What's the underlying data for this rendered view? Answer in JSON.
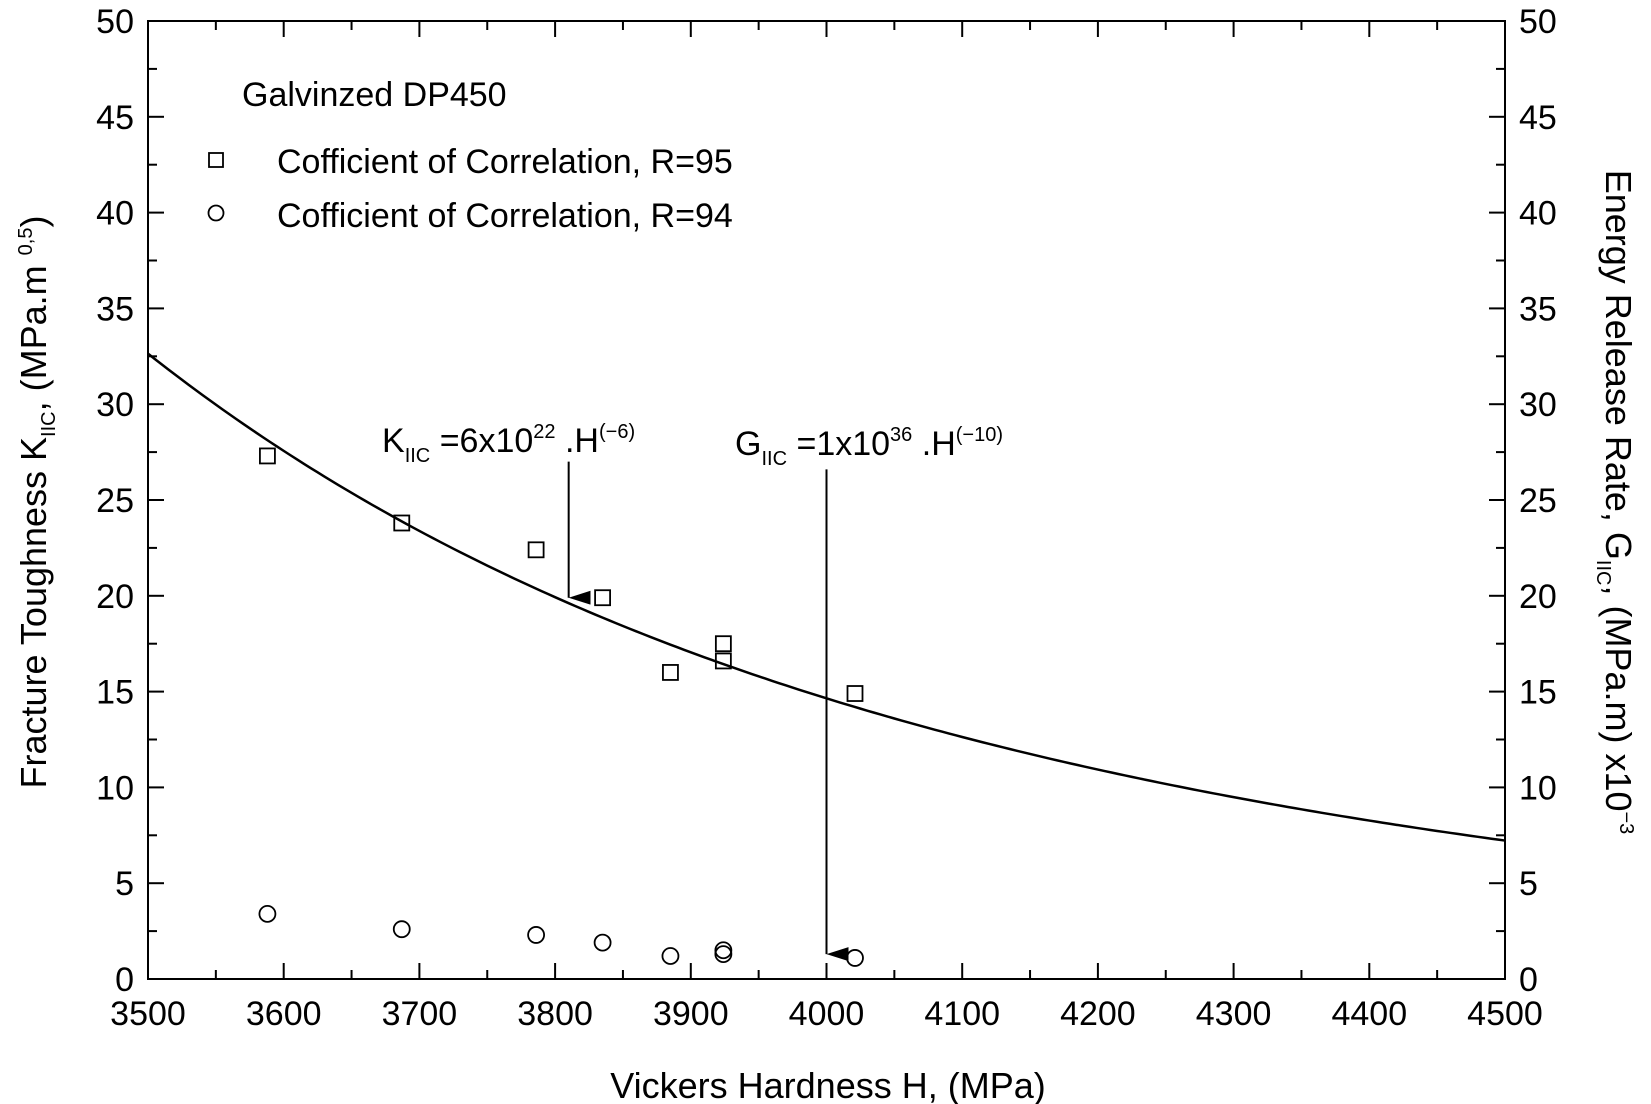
{
  "chart_data": {
    "type": "scatter",
    "xlabel": "Vickers Hardness H, (MPa)",
    "ylabel_left": {
      "main": "Fracture Toughness K",
      "sub": "IIC",
      "after": ", (MPa.m ",
      "sup": "0,5",
      "close": ")"
    },
    "ylabel_right": {
      "main": "Energy Release Rate, G",
      "sub": "IIC",
      "after": ", (MPa.m) x10",
      "sup": "−3"
    },
    "xlim": [
      3500,
      4500
    ],
    "ylim": [
      0,
      50
    ],
    "x_ticks": [
      3500,
      3600,
      3700,
      3800,
      3900,
      4000,
      4100,
      4200,
      4300,
      4400,
      4500
    ],
    "y_ticks": [
      0,
      5,
      10,
      15,
      20,
      25,
      30,
      35,
      40,
      45,
      50
    ],
    "grid": false,
    "legend": {
      "title": "Galvinzed DP450",
      "placement": "top-left",
      "entries": [
        {
          "marker": "square",
          "label": "Cofficient of Correlation, R=95"
        },
        {
          "marker": "circle",
          "label": "Cofficient of Correlation, R=94"
        }
      ]
    },
    "series": [
      {
        "marker": "square",
        "axis": "left",
        "points": [
          {
            "x": 3588,
            "y": 27.3
          },
          {
            "x": 3687,
            "y": 23.8
          },
          {
            "x": 3786,
            "y": 22.4
          },
          {
            "x": 3835,
            "y": 19.9
          },
          {
            "x": 3885,
            "y": 16.0
          },
          {
            "x": 3924,
            "y": 17.5
          },
          {
            "x": 3924,
            "y": 16.6
          },
          {
            "x": 4021,
            "y": 14.9
          }
        ],
        "fit": {
          "coef": 6e+22,
          "exp": -6
        }
      },
      {
        "marker": "circle",
        "axis": "right",
        "points": [
          {
            "x": 3588,
            "y": 3.4
          },
          {
            "x": 3687,
            "y": 2.6
          },
          {
            "x": 3786,
            "y": 2.3
          },
          {
            "x": 3835,
            "y": 1.9
          },
          {
            "x": 3885,
            "y": 1.2
          },
          {
            "x": 3924,
            "y": 1.5
          },
          {
            "x": 3924,
            "y": 1.3
          },
          {
            "x": 4021,
            "y": 1.1
          }
        ],
        "fit": {
          "coef": 1e+36,
          "exp": -10,
          "scale": 1000
        }
      }
    ],
    "annotations": [
      {
        "id": "k",
        "base": "K",
        "sub": "IIC",
        "eq": " =6x10",
        "sup1": "22",
        "mid": " .H",
        "sup2": "(−6)",
        "arrow_x": 3810,
        "arrow_y_top": 27.0,
        "arrow_y_tip": 19.9
      },
      {
        "id": "g",
        "base": "G",
        "sub": "IIC",
        "eq": " =1x10",
        "sup1": "36",
        "mid": " .H",
        "sup2": "(−10)",
        "arrow_x": 4000,
        "arrow_y_top": 26.6,
        "arrow_y_tip": 1.3
      }
    ]
  }
}
